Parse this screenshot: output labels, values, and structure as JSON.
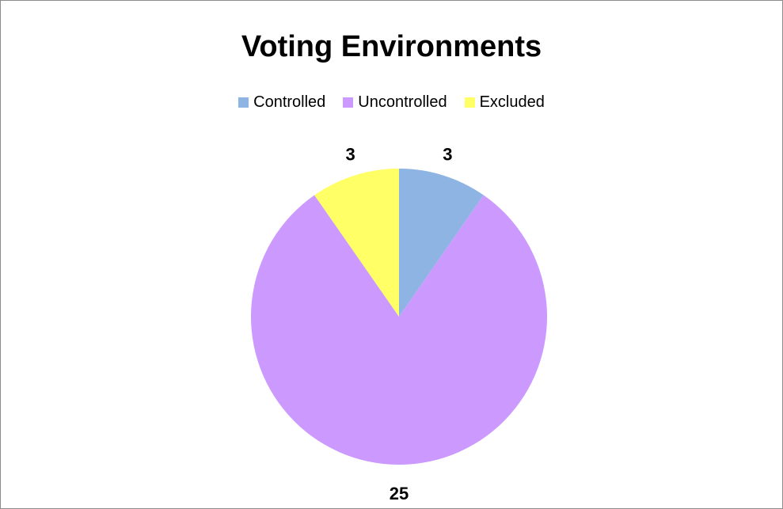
{
  "chart_data": {
    "type": "pie",
    "title": "Voting Environments",
    "categories": [
      "Controlled",
      "Uncontrolled",
      "Excluded"
    ],
    "values": [
      3,
      25,
      3
    ],
    "colors": [
      "#8EB4E3",
      "#CC99FF",
      "#FFFF66"
    ],
    "legend_position": "top",
    "data_labels": [
      "3",
      "25",
      "3"
    ]
  }
}
